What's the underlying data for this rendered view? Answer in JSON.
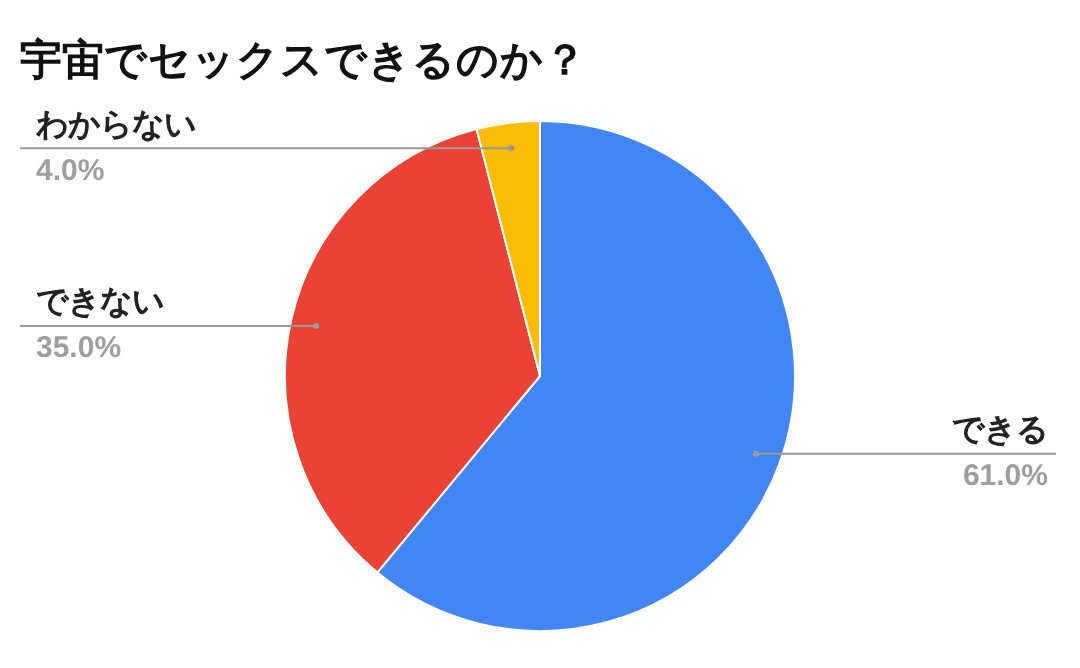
{
  "chart_data": {
    "type": "pie",
    "title": "宇宙でセックスできるのか？",
    "categories": [
      "できる",
      "できない",
      "わからない"
    ],
    "values": [
      61,
      35,
      4
    ],
    "colors": [
      "#4285f4",
      "#ea4335",
      "#fbbc04"
    ],
    "value_labels": [
      "61.0%",
      "35.0%",
      "4.0%"
    ],
    "legend": false
  }
}
